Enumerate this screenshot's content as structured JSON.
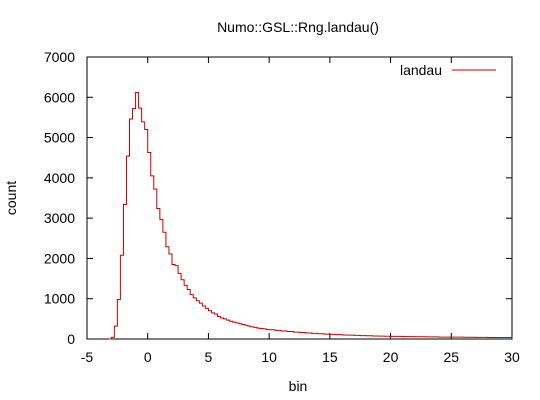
{
  "chart_data": {
    "type": "line",
    "style": "steps",
    "title": "Numo::GSL::Rng.landau()",
    "xlabel": "bin",
    "ylabel": "count",
    "xlim": [
      -5,
      30
    ],
    "ylim": [
      0,
      7000
    ],
    "grid": false,
    "legend_position": "top-right",
    "x_ticks": [
      -5,
      0,
      5,
      10,
      15,
      20,
      25,
      30
    ],
    "y_ticks": [
      0,
      1000,
      2000,
      3000,
      4000,
      5000,
      6000,
      7000
    ],
    "series": [
      {
        "name": "landau",
        "color": "#cc0000",
        "x": [
          -3.25,
          -3.0,
          -2.75,
          -2.5,
          -2.25,
          -2.0,
          -1.75,
          -1.5,
          -1.25,
          -1.0,
          -0.75,
          -0.5,
          -0.25,
          0.0,
          0.25,
          0.5,
          0.75,
          1.0,
          1.25,
          1.5,
          1.75,
          2.0,
          2.25,
          2.5,
          2.75,
          3.0,
          3.25,
          3.5,
          3.75,
          4.0,
          4.25,
          4.5,
          4.75,
          5.0,
          5.25,
          5.5,
          5.75,
          6.0,
          6.25,
          6.5,
          6.75,
          7.0,
          7.25,
          7.5,
          7.75,
          8.0,
          8.25,
          8.5,
          8.75,
          9.0,
          9.25,
          9.5,
          9.75,
          10.0,
          10.5,
          11.0,
          11.5,
          12.0,
          12.5,
          13.0,
          13.5,
          14.0,
          14.5,
          15.0,
          15.5,
          16.0,
          16.5,
          17.0,
          17.5,
          18.0,
          18.5,
          19.0,
          19.5,
          20.0,
          21.0,
          22.0,
          23.0,
          24.0,
          25.0,
          26.0,
          27.0,
          28.0,
          29.0,
          30.0
        ],
        "values": [
          0,
          40,
          320,
          980,
          2080,
          3340,
          4540,
          5460,
          5720,
          6120,
          5730,
          5390,
          5200,
          4630,
          4050,
          3720,
          3240,
          2970,
          2650,
          2290,
          2110,
          1850,
          1820,
          1630,
          1470,
          1330,
          1230,
          1100,
          1020,
          950,
          890,
          820,
          760,
          700,
          650,
          620,
          560,
          520,
          500,
          470,
          440,
          420,
          400,
          380,
          360,
          340,
          320,
          300,
          290,
          270,
          260,
          250,
          240,
          230,
          215,
          200,
          185,
          170,
          160,
          150,
          140,
          130,
          120,
          115,
          110,
          100,
          95,
          90,
          85,
          80,
          76,
          72,
          68,
          64,
          60,
          56,
          52,
          48,
          45,
          42,
          40,
          38,
          36,
          34
        ]
      }
    ]
  }
}
